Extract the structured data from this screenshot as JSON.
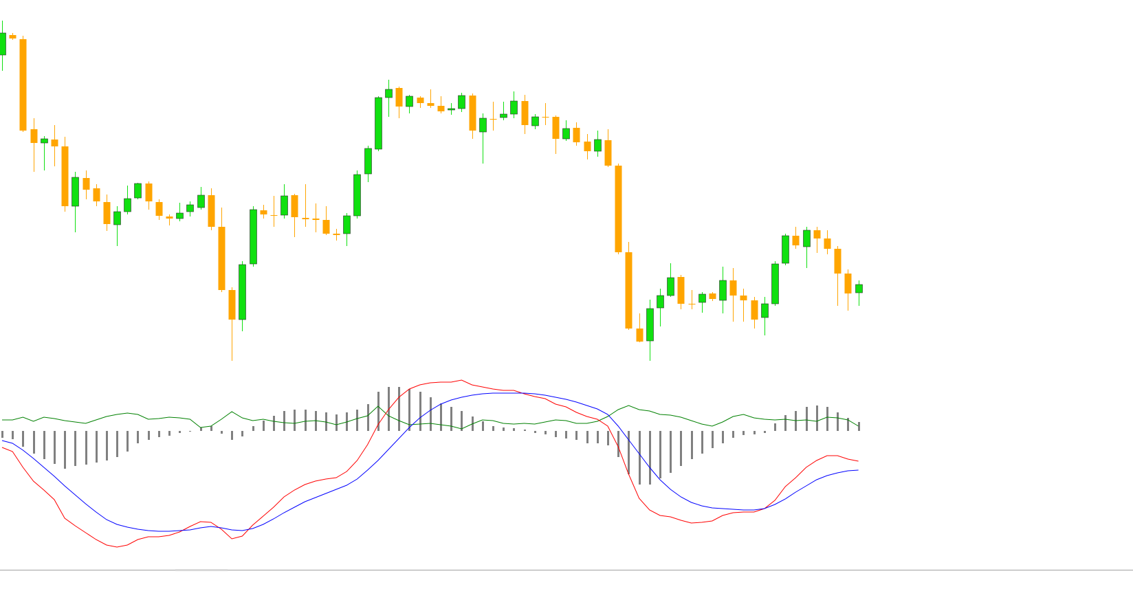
{
  "chart_data": [
    {
      "type": "candlestick",
      "ylim": [
        50,
        600
      ],
      "up_color": "#10e010",
      "down_color": "#ffa500",
      "open": [
        520,
        549,
        543,
        412,
        392,
        397,
        387,
        300,
        341,
        326,
        306,
        273,
        292,
        312,
        333,
        306,
        285,
        282,
        292,
        298,
        316,
        270,
        178,
        135,
        216,
        294,
        287,
        287,
        316,
        283,
        282,
        280,
        260,
        260,
        286,
        347,
        383,
        458,
        472,
        445,
        458,
        450,
        446,
        440,
        442,
        461,
        408,
        427,
        429,
        434,
        453,
        417,
        430,
        430,
        398,
        414,
        394,
        380,
        396,
        359,
        233,
        122,
        104,
        152,
        170,
        197,
        158,
        160,
        173,
        163,
        192,
        170,
        163,
        138,
        158,
        217,
        257,
        241,
        265,
        253,
        238,
        202,
        174
      ],
      "high": [
        570,
        552,
        548,
        428,
        402,
        418,
        401,
        350,
        352,
        332,
        317,
        300,
        330,
        334,
        336,
        310,
        288,
        305,
        307,
        328,
        326,
        298,
        182,
        220,
        300,
        302,
        315,
        332,
        318,
        332,
        304,
        300,
        267,
        290,
        352,
        388,
        460,
        484,
        474,
        462,
        460,
        470,
        460,
        450,
        465,
        464,
        435,
        452,
        452,
        467,
        462,
        434,
        450,
        432,
        425,
        422,
        405,
        410,
        412,
        362,
        248,
        144,
        164,
        180,
        217,
        200,
        178,
        175,
        175,
        212,
        210,
        180,
        168,
        168,
        220,
        260,
        270,
        270,
        270,
        265,
        242,
        208,
        192
      ],
      "low": [
        497,
        542,
        408,
        350,
        352,
        358,
        292,
        262,
        310,
        300,
        264,
        242,
        288,
        310,
        295,
        280,
        272,
        278,
        285,
        295,
        265,
        175,
        75,
        118,
        212,
        282,
        270,
        282,
        255,
        270,
        262,
        258,
        250,
        242,
        282,
        335,
        380,
        430,
        428,
        435,
        443,
        443,
        435,
        433,
        437,
        398,
        362,
        410,
        425,
        428,
        405,
        412,
        418,
        376,
        395,
        388,
        368,
        372,
        357,
        230,
        120,
        102,
        75,
        125,
        168,
        150,
        150,
        145,
        162,
        144,
        132,
        132,
        122,
        112,
        155,
        214,
        238,
        210,
        232,
        230,
        155,
        148,
        155
      ],
      "close": [
        552,
        544,
        410,
        392,
        398,
        387,
        300,
        342,
        324,
        307,
        274,
        292,
        311,
        333,
        307,
        286,
        282,
        290,
        302,
        316,
        270,
        178,
        135,
        215,
        295,
        288,
        286,
        315,
        284,
        281,
        280,
        260,
        258,
        286,
        346,
        384,
        458,
        470,
        445,
        460,
        450,
        446,
        438,
        442,
        461,
        410,
        428,
        426,
        434,
        453,
        418,
        430,
        429,
        398,
        413,
        393,
        380,
        397,
        359,
        233,
        122,
        103,
        151,
        170,
        196,
        158,
        157,
        172,
        165,
        192,
        170,
        163,
        135,
        158,
        216,
        257,
        243,
        265,
        253,
        238,
        202,
        173,
        186
      ]
    },
    {
      "type": "indicator",
      "ylim": [
        -173,
        82
      ],
      "series": [
        {
          "type": "bar",
          "color": "#808080",
          "values": [
            -10,
            -12,
            -23,
            -33,
            -41,
            -48,
            -55,
            -51,
            -49,
            -46,
            -43,
            -38,
            -30,
            -18,
            -13,
            -9,
            -7,
            -3,
            -1,
            5,
            7,
            -4,
            -13,
            -8,
            7,
            15,
            22,
            29,
            31,
            31,
            29,
            27,
            24,
            27,
            31,
            39,
            57,
            64,
            64,
            61,
            57,
            49,
            40,
            35,
            29,
            21,
            14,
            7,
            5,
            4,
            2,
            -3,
            -5,
            -9,
            -11,
            -13,
            -18,
            -18,
            -21,
            -38,
            -63,
            -78,
            -78,
            -69,
            -61,
            -51,
            -41,
            -33,
            -25,
            -18,
            -10,
            -6,
            -5,
            -3,
            11,
            23,
            29,
            35,
            37,
            35,
            27,
            19,
            13
          ]
        },
        {
          "type": "line",
          "color": "#008000",
          "values": [
            16,
            16,
            20,
            14,
            20,
            18,
            15,
            13,
            11,
            16,
            21,
            24,
            26,
            24,
            17,
            18,
            20,
            19,
            17,
            5,
            7,
            17,
            28,
            19,
            15,
            17,
            14,
            12,
            11,
            14,
            15,
            13,
            9,
            13,
            18,
            22,
            36,
            22,
            15,
            9,
            10,
            11,
            9,
            7,
            3,
            10,
            16,
            15,
            11,
            10,
            11,
            10,
            13,
            16,
            15,
            11,
            11,
            14,
            21,
            31,
            37,
            31,
            29,
            24,
            23,
            20,
            15,
            10,
            7,
            13,
            21,
            24,
            19,
            17,
            16,
            17,
            15,
            16,
            14,
            20,
            19,
            16,
            7
          ]
        },
        {
          "type": "line",
          "color": "#ff0000",
          "values": [
            -24,
            -30,
            -53,
            -73,
            -86,
            -100,
            -127,
            -138,
            -148,
            -158,
            -166,
            -169,
            -166,
            -158,
            -154,
            -154,
            -152,
            -147,
            -139,
            -132,
            -133,
            -143,
            -157,
            -153,
            -137,
            -124,
            -111,
            -96,
            -86,
            -78,
            -73,
            -70,
            -68,
            -59,
            -43,
            -20,
            9,
            31,
            49,
            61,
            67,
            70,
            71,
            71,
            74,
            67,
            64,
            61,
            59,
            59,
            54,
            50,
            47,
            39,
            35,
            27,
            21,
            17,
            7,
            -23,
            -63,
            -98,
            -115,
            -123,
            -125,
            -130,
            -134,
            -133,
            -131,
            -123,
            -119,
            -118,
            -118,
            -113,
            -101,
            -81,
            -68,
            -53,
            -43,
            -36,
            -36,
            -41,
            -44
          ]
        },
        {
          "type": "line",
          "color": "#0000ff",
          "values": [
            -14,
            -18,
            -28,
            -40,
            -53,
            -66,
            -80,
            -93,
            -106,
            -118,
            -129,
            -136,
            -140,
            -143,
            -145,
            -146,
            -146,
            -145,
            -144,
            -141,
            -139,
            -141,
            -144,
            -145,
            -142,
            -136,
            -128,
            -119,
            -111,
            -103,
            -97,
            -91,
            -85,
            -79,
            -70,
            -57,
            -43,
            -27,
            -11,
            5,
            19,
            30,
            39,
            45,
            49,
            52,
            54,
            55,
            55,
            55,
            55,
            54,
            52,
            49,
            46,
            42,
            37,
            32,
            24,
            7,
            -13,
            -33,
            -53,
            -71,
            -85,
            -96,
            -104,
            -109,
            -112,
            -113,
            -114,
            -115,
            -115,
            -113,
            -107,
            -99,
            -89,
            -80,
            -71,
            -65,
            -61,
            -58,
            -57
          ]
        }
      ]
    }
  ]
}
